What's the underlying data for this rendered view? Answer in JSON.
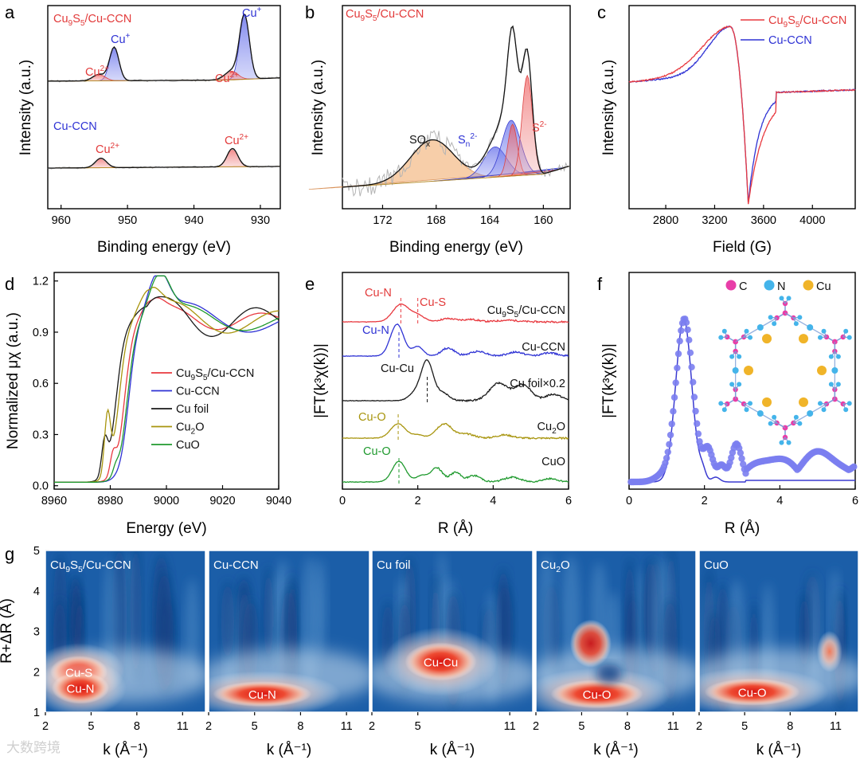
{
  "chart_data": [
    {
      "id": "a",
      "type": "line",
      "panel_label": "a",
      "xlabel": "Binding energy (eV)",
      "ylabel": "Intensity (a.u.)",
      "xlim": [
        962,
        927
      ],
      "xticks": [
        960,
        950,
        940,
        930
      ],
      "series": [
        {
          "name": "Cu9S5/Cu-CCN",
          "peaks": [
            {
              "center": 952.0,
              "label": "Cu+"
            },
            {
              "center": 954.2,
              "label": "Cu2+"
            },
            {
              "center": 932.4,
              "label": "Cu+"
            },
            {
              "center": 934.4,
              "label": "Cu2+"
            }
          ]
        },
        {
          "name": "Cu-CCN",
          "peaks": [
            {
              "center": 954.0,
              "label": "Cu2+"
            },
            {
              "center": 934.2,
              "label": "Cu2+"
            }
          ]
        }
      ],
      "texts": {
        "top_sample": [
          "Cu",
          "9",
          "S",
          "5",
          "/Cu-CCN"
        ],
        "bottom_sample": "Cu-CCN",
        "cu_plus": [
          "Cu",
          "+"
        ],
        "cu_2plus": [
          "Cu",
          "2+"
        ]
      }
    },
    {
      "id": "b",
      "type": "line",
      "panel_label": "b",
      "xlabel": "Binding energy (eV)",
      "ylabel": "Intensity (a.u.)",
      "xlim": [
        175,
        158
      ],
      "xticks": [
        172,
        168,
        164,
        160
      ],
      "series": [
        {
          "name": "Cu9S5/Cu-CCN",
          "peaks": [
            {
              "center": 168.3,
              "label": "SOx"
            },
            {
              "center": 163.6,
              "label": "Sn2-"
            },
            {
              "center": 162.4,
              "label": "Sn2-"
            },
            {
              "center": 161.3,
              "label": "S2-"
            }
          ]
        }
      ],
      "texts": {
        "sample": [
          "Cu",
          "9",
          "S",
          "5",
          "/Cu-CCN"
        ],
        "sox": [
          "SO",
          "x"
        ],
        "sn": [
          "S",
          "n",
          "2-"
        ],
        "s2": [
          "S",
          "2-"
        ]
      }
    },
    {
      "id": "c",
      "type": "line",
      "panel_label": "c",
      "xlabel": "Field (G)",
      "ylabel": "Intensity (a.u.)",
      "xlim": [
        2500,
        4350
      ],
      "xticks": [
        2800,
        3200,
        3600,
        4000
      ],
      "series": [
        {
          "name": "Cu9S5/Cu-CCN",
          "color": "#e8393f"
        },
        {
          "name": "Cu-CCN",
          "color": "#2e32d4"
        }
      ],
      "legend_texts": [
        [
          "Cu",
          "9",
          "S",
          "5",
          "/Cu-CCN"
        ],
        [
          "Cu-CCN"
        ]
      ],
      "legend": "top-right"
    },
    {
      "id": "d",
      "type": "line",
      "panel_label": "d",
      "xlabel": "Energy (eV)",
      "ylabel": "Normalized μχ (a.u.)",
      "xlim": [
        8960,
        9040
      ],
      "ylim": [
        -0.02,
        1.25
      ],
      "xticks": [
        8960,
        8980,
        9000,
        9020,
        9040
      ],
      "yticks": [
        0.0,
        0.3,
        0.6,
        0.9,
        1.2
      ],
      "ytick_labels": [
        "0.0",
        "0.3",
        "0.6",
        "0.9",
        "1.2"
      ],
      "series": [
        {
          "name": "Cu9S5/Cu-CCN",
          "color": "#e8393f",
          "legend": [
            "Cu",
            "9",
            "S",
            "5",
            "/Cu-CCN"
          ]
        },
        {
          "name": "Cu-CCN",
          "color": "#2e32d4",
          "legend": [
            "Cu-CCN"
          ]
        },
        {
          "name": "Cu foil",
          "color": "#1a1a1a",
          "legend": [
            "Cu foil"
          ]
        },
        {
          "name": "Cu2O",
          "color": "#a8950e",
          "legend": [
            "Cu",
            "2",
            "O"
          ]
        },
        {
          "name": "CuO",
          "color": "#1f9a2e",
          "legend": [
            "CuO"
          ]
        }
      ],
      "legend": "center-right"
    },
    {
      "id": "e",
      "type": "line",
      "panel_label": "e",
      "xlabel": "R (Å)",
      "ylabel": "|FT(k³χ(k))|",
      "xlim": [
        0,
        6
      ],
      "xticks": [
        0,
        2,
        4,
        6
      ],
      "series": [
        {
          "name": "Cu9S5/Cu-CCN",
          "color": "#e8393f",
          "label": [
            "Cu",
            "9",
            "S",
            "5",
            "/Cu-CCN"
          ],
          "markers": [
            {
              "r": 1.55,
              "label": "Cu-N"
            },
            {
              "r": 2.0,
              "label": "Cu-S"
            }
          ]
        },
        {
          "name": "Cu-CCN",
          "color": "#2e32d4",
          "label": [
            "Cu-CCN"
          ],
          "markers": [
            {
              "r": 1.5,
              "label": "Cu-N"
            }
          ]
        },
        {
          "name": "Cu foil×0.2",
          "color": "#1a1a1a",
          "label": [
            "Cu foil×0.2"
          ],
          "markers": [
            {
              "r": 2.25,
              "label": "Cu-Cu"
            }
          ]
        },
        {
          "name": "Cu2O",
          "color": "#a8950e",
          "label": [
            "Cu",
            "2",
            "O"
          ],
          "markers": [
            {
              "r": 1.48,
              "label": "Cu-O"
            }
          ]
        },
        {
          "name": "CuO",
          "color": "#1f9a2e",
          "label": [
            "CuO"
          ],
          "markers": [
            {
              "r": 1.5,
              "label": "Cu-O"
            }
          ]
        }
      ]
    },
    {
      "id": "f",
      "type": "scatter",
      "panel_label": "f",
      "xlabel": "R (Å)",
      "ylabel": "|FT(k³χ(k))|",
      "xlim": [
        0,
        6
      ],
      "xticks": [
        0,
        2,
        4,
        6
      ],
      "series": [
        {
          "name": "data",
          "style": "points"
        },
        {
          "name": "fit",
          "style": "line"
        }
      ],
      "inset_legend": [
        {
          "label": "C",
          "color": "#e83ea8"
        },
        {
          "label": "N",
          "color": "#44b4ea"
        },
        {
          "label": "Cu",
          "color": "#f0b429"
        }
      ]
    },
    {
      "id": "g",
      "type": "heatmap",
      "panel_label": "g",
      "ylabel": "R+ΔR (Å)",
      "xlabel": "k (Å⁻¹)",
      "ylim": [
        1,
        5
      ],
      "yticks": [
        1,
        2,
        3,
        4,
        5
      ],
      "maps": [
        {
          "title": [
            "Cu",
            "9",
            "S",
            "5",
            "/Cu-CCN"
          ],
          "xticks": [
            2,
            5,
            8,
            11
          ],
          "xlim": [
            2,
            12.5
          ],
          "spots": [
            {
              "label": "Cu-S",
              "k": 4.2,
              "R": 2.0
            },
            {
              "label": "Cu-N",
              "k": 4.3,
              "R": 1.6
            }
          ]
        },
        {
          "title": [
            "Cu-CCN"
          ],
          "xticks": [
            2,
            5,
            8,
            11
          ],
          "xlim": [
            2,
            12.5
          ],
          "spots": [
            {
              "label": "Cu-N",
              "k": 5.5,
              "R": 1.45
            }
          ]
        },
        {
          "title": [
            "Cu foil"
          ],
          "xticks": [
            2,
            5,
            11
          ],
          "xlim": [
            2,
            12.5
          ],
          "spots": [
            {
              "label": "Cu-Cu",
              "k": 6.5,
              "R": 2.25
            }
          ]
        },
        {
          "title": [
            "Cu",
            "2",
            "O"
          ],
          "xticks": [
            2,
            5,
            8,
            11
          ],
          "xlim": [
            2,
            12.5
          ],
          "spots": [
            {
              "label": "Cu-O",
              "k": 6.0,
              "R": 1.45
            }
          ]
        },
        {
          "title": [
            "CuO"
          ],
          "xticks": [
            2,
            5,
            8,
            11
          ],
          "xlim": [
            2,
            12.5
          ],
          "spots": [
            {
              "label": "Cu-O",
              "k": 5.5,
              "R": 1.5
            }
          ]
        }
      ]
    }
  ],
  "watermark": "大数跨境"
}
